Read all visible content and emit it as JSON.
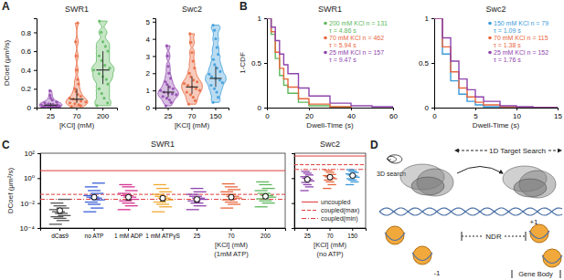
{
  "chart_data": [
    {
      "type": "violin",
      "panel": "A",
      "title": "SWR1",
      "xlabel": "[KCl] (mM)",
      "ylabel": "DCoef (μm²/s)",
      "categories": [
        "25",
        "70",
        "200"
      ],
      "colors": [
        "#8e44ad",
        "#e8663c",
        "#5cb85c"
      ],
      "ylim": [
        0,
        0.95
      ],
      "yticks": [
        0,
        0.2,
        0.4,
        0.6,
        0.8
      ],
      "distributions": [
        [
          0.005,
          0.008,
          0.01,
          0.012,
          0.015,
          0.018,
          0.02,
          0.022,
          0.025,
          0.028,
          0.03,
          0.035,
          0.04,
          0.05,
          0.06,
          0.08,
          0.1,
          0.13,
          0.18
        ],
        [
          0.01,
          0.02,
          0.03,
          0.04,
          0.05,
          0.06,
          0.07,
          0.08,
          0.09,
          0.1,
          0.12,
          0.14,
          0.17,
          0.2,
          0.25,
          0.3,
          0.4,
          0.55,
          0.7,
          0.9
        ],
        [
          0.02,
          0.05,
          0.1,
          0.15,
          0.2,
          0.25,
          0.3,
          0.33,
          0.36,
          0.4,
          0.42,
          0.45,
          0.5,
          0.55,
          0.6,
          0.65,
          0.7,
          0.8,
          0.92
        ]
      ],
      "medians": [
        0.025,
        0.09,
        0.4
      ],
      "q1": [
        0.012,
        0.05,
        0.25
      ],
      "q3": [
        0.05,
        0.2,
        0.6
      ]
    },
    {
      "type": "violin",
      "title": "Swc2",
      "xlabel": "[KCl] (mM)",
      "categories": [
        "25",
        "70",
        "150"
      ],
      "colors": [
        "#8e44ad",
        "#e8663c",
        "#3a9ad9"
      ],
      "ylim": [
        0,
        5.2
      ],
      "yticks": [
        0,
        1,
        2,
        3,
        4,
        5
      ],
      "distributions": [
        [
          0.1,
          0.3,
          0.45,
          0.55,
          0.65,
          0.75,
          0.8,
          0.85,
          0.9,
          1,
          1.1,
          1.2,
          1.35,
          1.5,
          1.7,
          2,
          2.4,
          3,
          3.6
        ],
        [
          0.2,
          0.4,
          0.6,
          0.75,
          0.9,
          1,
          1.1,
          1.2,
          1.3,
          1.4,
          1.5,
          1.6,
          1.8,
          2,
          2.3,
          2.7,
          3.2,
          3.8,
          4.3
        ],
        [
          0.3,
          0.6,
          0.9,
          1.1,
          1.3,
          1.45,
          1.6,
          1.7,
          1.8,
          1.95,
          2.1,
          2.3,
          2.5,
          2.8,
          3.1,
          3.5,
          4,
          4.5,
          4.8
        ]
      ],
      "medians": [
        0.9,
        1.2,
        1.7
      ],
      "q1": [
        0.6,
        0.8,
        1.2
      ],
      "q3": [
        1.3,
        1.8,
        2.4
      ]
    },
    {
      "type": "line",
      "panel": "B",
      "title": "SWR1",
      "xlabel": "Dwell-Time (s)",
      "ylabel": "1-CDF",
      "xlim": [
        0,
        60
      ],
      "xticks": [
        0,
        20,
        40,
        60
      ],
      "ylim": [
        0,
        1
      ],
      "yticks": [
        0,
        0.5,
        1
      ],
      "legend": "upper right",
      "series": [
        {
          "name": "200 mM KCl n = 131",
          "annotation": "τ = 4.86 s",
          "color": "#5cb85c",
          "x": [
            0,
            2,
            4,
            6,
            8,
            10,
            15,
            20,
            30,
            40
          ],
          "values": [
            1,
            0.82,
            0.55,
            0.36,
            0.25,
            0.16,
            0.06,
            0.02,
            0.005,
            0
          ]
        },
        {
          "name": "70 mM KCl n = 462",
          "annotation": "τ = 5.94 s",
          "color": "#e8663c",
          "x": [
            0,
            2,
            4,
            6,
            8,
            10,
            15,
            20,
            30,
            40
          ],
          "values": [
            1,
            0.85,
            0.62,
            0.44,
            0.32,
            0.23,
            0.1,
            0.04,
            0.01,
            0
          ]
        },
        {
          "name": "25 mM KCl n = 157",
          "annotation": "τ = 9.47 s",
          "color": "#8e44ad",
          "x": [
            0,
            2,
            4,
            6,
            8,
            10,
            15,
            20,
            30,
            40,
            50,
            60
          ],
          "values": [
            1,
            0.9,
            0.75,
            0.6,
            0.48,
            0.38,
            0.22,
            0.13,
            0.05,
            0.02,
            0.01,
            0
          ]
        }
      ]
    },
    {
      "type": "line",
      "title": "Swc2",
      "xlabel": "Dwell-Time (s)",
      "xlim": [
        0,
        15
      ],
      "xticks": [
        0,
        5,
        10,
        15
      ],
      "ylim": [
        0,
        1
      ],
      "yticks": [
        0,
        0.5,
        1
      ],
      "legend": "upper right",
      "series": [
        {
          "name": "150 mM KCl n = 79",
          "annotation": "τ = 1.09 s",
          "color": "#3a9ad9",
          "x": [
            0,
            1,
            2,
            3,
            4,
            5,
            6,
            8,
            10,
            12,
            15
          ],
          "values": [
            1,
            0.6,
            0.3,
            0.15,
            0.07,
            0.03,
            0.01,
            0,
            0,
            0,
            0
          ]
        },
        {
          "name": "70 mM KCl n = 115",
          "annotation": "τ = 1.38 s",
          "color": "#e8663c",
          "x": [
            0,
            1,
            2,
            3,
            4,
            5,
            6,
            8,
            10,
            12,
            15
          ],
          "values": [
            1,
            0.68,
            0.4,
            0.22,
            0.12,
            0.06,
            0.03,
            0.01,
            0,
            0,
            0
          ]
        },
        {
          "name": "25 mM KCl n = 152",
          "annotation": "τ = 1.76 s",
          "color": "#8e44ad",
          "x": [
            0,
            1,
            2,
            3,
            4,
            5,
            6,
            8,
            10,
            12,
            15
          ],
          "values": [
            1,
            0.78,
            0.52,
            0.32,
            0.2,
            0.12,
            0.07,
            0.02,
            0.01,
            0,
            0
          ]
        }
      ]
    },
    {
      "type": "strip",
      "panel": "C",
      "title": "SWR1",
      "ylabel": "DCoef (μm²/s)",
      "xlabel": "[KCl] (mM)",
      "xlabel_note": "(1mM ATP)",
      "log": "y",
      "ylim": [
        0.0001,
        100
      ],
      "yticks": [
        {
          "value": 0.0001,
          "label": "10⁻⁴"
        },
        {
          "value": 0.01,
          "label": "10⁻²"
        },
        {
          "value": 1,
          "label": "10⁰"
        },
        {
          "value": 100,
          "label": "10²"
        }
      ],
      "categories": [
        "dCas9",
        "no ATP",
        "1 mM ADP",
        "1 mM ATPγS",
        "25",
        "70",
        "200"
      ],
      "colors": [
        "#555555",
        "#3b5fd9",
        "#d6338f",
        "#f0a830",
        "#8e44ad",
        "#e8663c",
        "#5cb85c"
      ],
      "values": [
        [
          0.0002,
          0.0004,
          0.0006,
          0.0008,
          0.001,
          0.0015,
          0.002,
          0.003,
          0.004,
          0.006,
          0.01,
          0.02
        ],
        [
          0.002,
          0.004,
          0.008,
          0.012,
          0.018,
          0.025,
          0.03,
          0.04,
          0.06,
          0.1,
          0.2,
          0.4
        ],
        [
          0.003,
          0.006,
          0.01,
          0.015,
          0.02,
          0.03,
          0.04,
          0.06,
          0.1,
          0.2,
          0.3
        ],
        [
          0.002,
          0.005,
          0.008,
          0.012,
          0.018,
          0.025,
          0.035,
          0.05,
          0.08,
          0.15,
          0.3
        ],
        [
          0.003,
          0.006,
          0.01,
          0.015,
          0.02,
          0.025,
          0.035,
          0.05,
          0.08,
          0.15
        ],
        [
          0.004,
          0.008,
          0.012,
          0.018,
          0.025,
          0.035,
          0.05,
          0.08,
          0.12,
          0.2,
          0.35
        ],
        [
          0.005,
          0.01,
          0.015,
          0.022,
          0.03,
          0.04,
          0.06,
          0.1,
          0.15,
          0.3,
          0.5
        ]
      ],
      "means": [
        0.0025,
        0.03,
        0.03,
        0.025,
        0.02,
        0.03,
        0.035
      ],
      "errors": [
        0.001,
        0.01,
        0.012,
        0.01,
        0.008,
        0.01,
        0.012
      ],
      "reference_lines": [
        {
          "value": 4,
          "line_style": "solid",
          "color": "#e03c3c"
        },
        {
          "value": 0.05,
          "line_style": "dashed",
          "color": "#e03c3c"
        },
        {
          "value": 0.02,
          "line_style": "dashdot",
          "color": "#e03c3c"
        }
      ]
    },
    {
      "type": "strip",
      "title": "Swc2",
      "xlabel": "[KCl] (mM)",
      "xlabel_note": "(no ATP)",
      "log": "y",
      "ylim": [
        0.0001,
        100
      ],
      "yticks": [
        0.0001,
        0.01,
        1,
        100
      ],
      "tick_labels": "x",
      "legend": "lower right",
      "categories": [
        "25",
        "70",
        "150"
      ],
      "colors": [
        "#8e44ad",
        "#e8663c",
        "#3a9ad9"
      ],
      "values": [
        [
          0.1,
          0.2,
          0.3,
          0.45,
          0.6,
          0.8,
          1,
          1.3,
          1.8,
          2.5,
          3.5
        ],
        [
          0.15,
          0.3,
          0.5,
          0.7,
          0.9,
          1.1,
          1.3,
          1.6,
          2,
          3,
          4.2
        ],
        [
          0.3,
          0.5,
          0.7,
          0.9,
          1.2,
          1.5,
          1.8,
          2.2,
          2.8,
          3.6,
          4.8
        ]
      ],
      "means": [
        0.8,
        1.2,
        1.6
      ],
      "errors": [
        0.2,
        0.25,
        0.3
      ],
      "reference_lines": [
        {
          "name": "uncoupled",
          "value": 60,
          "line_style": "solid",
          "color": "#e03c3c"
        },
        {
          "name": "coupled(max)",
          "value": 12,
          "line_style": "dashed",
          "color": "#e03c3c"
        },
        {
          "name": "coupled(min)",
          "value": 5,
          "line_style": "dashdot",
          "color": "#e03c3c"
        }
      ]
    }
  ],
  "diagram": {
    "panel": "D",
    "search_1d": "1D Target Search",
    "search_3d": "3D search",
    "ndr": "NDR",
    "minus1": "-1",
    "plus1": "+1",
    "gene_body": "Gene Body"
  }
}
